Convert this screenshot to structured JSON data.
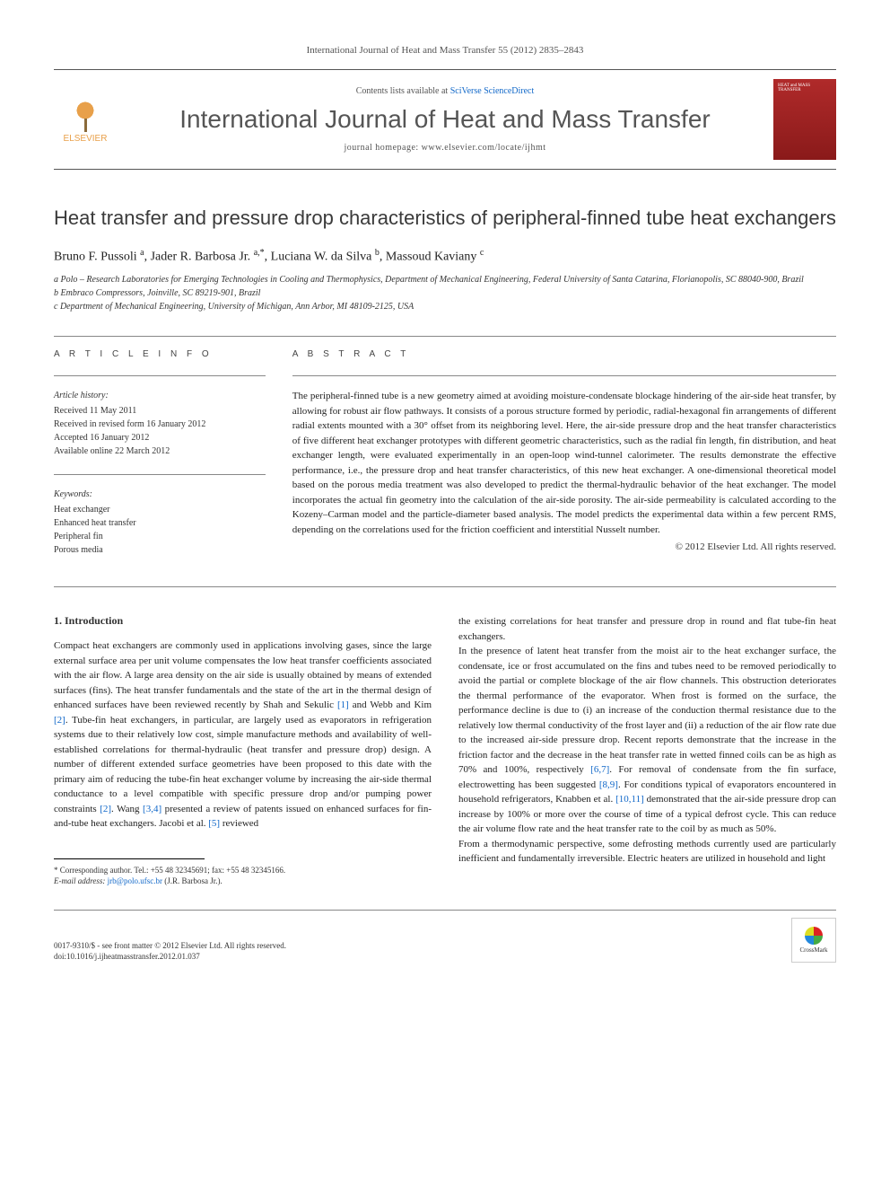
{
  "journal_ref": "International Journal of Heat and Mass Transfer 55 (2012) 2835–2843",
  "header": {
    "publisher": "ELSEVIER",
    "contents_prefix": "Contents lists available at ",
    "contents_link": "SciVerse ScienceDirect",
    "journal_name": "International Journal of Heat and Mass Transfer",
    "homepage": "journal homepage: www.elsevier.com/locate/ijhmt",
    "cover_title": "HEAT and MASS TRANSFER"
  },
  "article": {
    "title": "Heat transfer and pressure drop characteristics of peripheral-finned tube heat exchangers",
    "authors_html": "Bruno F. Pussoli <sup>a</sup>, Jader R. Barbosa Jr. <sup>a,*</sup>, Luciana W. da Silva <sup>b</sup>, Massoud Kaviany <sup>c</sup>",
    "affiliations": [
      "a Polo – Research Laboratories for Emerging Technologies in Cooling and Thermophysics, Department of Mechanical Engineering, Federal University of Santa Catarina, Florianopolis, SC 88040-900, Brazil",
      "b Embraco Compressors, Joinville, SC 89219-901, Brazil",
      "c Department of Mechanical Engineering, University of Michigan, Ann Arbor, MI 48109-2125, USA"
    ]
  },
  "info": {
    "label": "A R T I C L E   I N F O",
    "history_heading": "Article history:",
    "history": [
      "Received 11 May 2011",
      "Received in revised form 16 January 2012",
      "Accepted 16 January 2012",
      "Available online 22 March 2012"
    ],
    "keywords_heading": "Keywords:",
    "keywords": [
      "Heat exchanger",
      "Enhanced heat transfer",
      "Peripheral fin",
      "Porous media"
    ]
  },
  "abstract": {
    "label": "A B S T R A C T",
    "text": "The peripheral-finned tube is a new geometry aimed at avoiding moisture-condensate blockage hindering of the air-side heat transfer, by allowing for robust air flow pathways. It consists of a porous structure formed by periodic, radial-hexagonal fin arrangements of different radial extents mounted with a 30° offset from its neighboring level. Here, the air-side pressure drop and the heat transfer characteristics of five different heat exchanger prototypes with different geometric characteristics, such as the radial fin length, fin distribution, and heat exchanger length, were evaluated experimentally in an open-loop wind-tunnel calorimeter. The results demonstrate the effective performance, i.e., the pressure drop and heat transfer characteristics, of this new heat exchanger. A one-dimensional theoretical model based on the porous media treatment was also developed to predict the thermal-hydraulic behavior of the heat exchanger. The model incorporates the actual fin geometry into the calculation of the air-side porosity. The air-side permeability is calculated according to the Kozeny–Carman model and the particle-diameter based analysis. The model predicts the experimental data within a few percent RMS, depending on the correlations used for the friction coefficient and interstitial Nusselt number.",
    "copyright": "© 2012 Elsevier Ltd. All rights reserved."
  },
  "body": {
    "section_heading": "1. Introduction",
    "col1_p1": "Compact heat exchangers are commonly used in applications involving gases, since the large external surface area per unit volume compensates the low heat transfer coefficients associated with the air flow. A large area density on the air side is usually obtained by means of extended surfaces (fins). The heat transfer fundamentals and the state of the art in the thermal design of enhanced surfaces have been reviewed recently by Shah and Sekulic [1] and Webb and Kim [2]. Tube-fin heat exchangers, in particular, are largely used as evaporators in refrigeration systems due to their relatively low cost, simple manufacture methods and availability of well-established correlations for thermal-hydraulic (heat transfer and pressure drop) design. A number of different extended surface geometries have been proposed to this date with the primary aim of reducing the tube-fin heat exchanger volume by increasing the air-side thermal conductance to a level compatible with specific pressure drop and/or pumping power constraints [2]. Wang [3,4] presented a review of patents issued on enhanced surfaces for fin-and-tube heat exchangers. Jacobi et al. [5] reviewed",
    "col2_p1": "the existing correlations for heat transfer and pressure drop in round and flat tube-fin heat exchangers.",
    "col2_p2": "In the presence of latent heat transfer from the moist air to the heat exchanger surface, the condensate, ice or frost accumulated on the fins and tubes need to be removed periodically to avoid the partial or complete blockage of the air flow channels. This obstruction deteriorates the thermal performance of the evaporator. When frost is formed on the surface, the performance decline is due to (i) an increase of the conduction thermal resistance due to the relatively low thermal conductivity of the frost layer and (ii) a reduction of the air flow rate due to the increased air-side pressure drop. Recent reports demonstrate that the increase in the friction factor and the decrease in the heat transfer rate in wetted finned coils can be as high as 70% and 100%, respectively [6,7]. For removal of condensate from the fin surface, electrowetting has been suggested [8,9]. For conditions typical of evaporators encountered in household refrigerators, Knabben et al. [10,11] demonstrated that the air-side pressure drop can increase by 100% or more over the course of time of a typical defrost cycle. This can reduce the air volume flow rate and the heat transfer rate to the coil by as much as 50%.",
    "col2_p3": "From a thermodynamic perspective, some defrosting methods currently used are particularly inefficient and fundamentally irreversible. Electric heaters are utilized in household and light"
  },
  "footnote": {
    "corresponding": "* Corresponding author. Tel.: +55 48 32345691; fax: +55 48 32345166.",
    "email_label": "E-mail address:",
    "email": "jrb@polo.ufsc.br",
    "email_author": " (J.R. Barbosa Jr.)."
  },
  "footer": {
    "issn": "0017-9310/$ - see front matter © 2012 Elsevier Ltd. All rights reserved.",
    "doi": "doi:10.1016/j.ijheatmasstransfer.2012.01.037",
    "crossmark": "CrossMark"
  },
  "refs": {
    "r1": "[1]",
    "r2": "[2]",
    "r3": "[3,4]",
    "r5": "[5]",
    "r6": "[6,7]",
    "r8": "[8,9]",
    "r10": "[10,11]"
  },
  "colors": {
    "link": "#1168c9",
    "text": "#222222",
    "heading": "#3a3a3a",
    "logo": "#e8a04a",
    "cover": "#b02a2a"
  }
}
